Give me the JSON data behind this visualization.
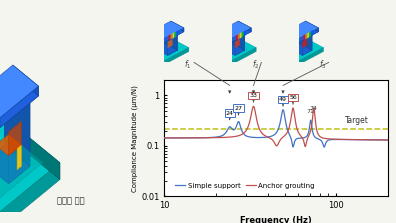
{
  "title": "",
  "xlabel": "Frequency (Hz)",
  "ylabel": "Compliance Magnitude (μm/N)",
  "xlim": [
    10,
    200
  ],
  "ylim": [
    0.01,
    2
  ],
  "target_line_y": 0.22,
  "target_label": "Target",
  "dashed_color": "#b8b800",
  "simple_support_color": "#4472c4",
  "anchor_grouting_color": "#c0504d",
  "legend_simple": "Simple support",
  "legend_anchor": "Anchor grouting",
  "left_label": "지지점 위치",
  "background_color": "#f5f5f0"
}
